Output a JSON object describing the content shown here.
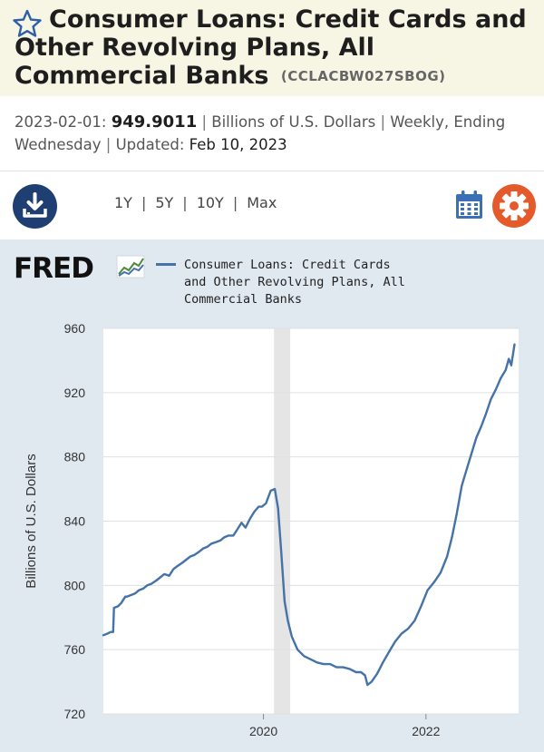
{
  "header": {
    "title": "Consumer Loans: Credit Cards and Other Revolving Plans, All Commercial Banks",
    "series_id": "(CCLACBW027SBOG)"
  },
  "meta": {
    "date": "2023-02-01:",
    "value": "949.9011",
    "units": "Billions of U.S. Dollars",
    "frequency": "Weekly, Ending Wednesday",
    "updated_label": "Updated:",
    "updated_date": "Feb 10, 2023",
    "separator": "|"
  },
  "controls": {
    "ranges": [
      "1Y",
      "5Y",
      "10Y",
      "Max"
    ],
    "icons": [
      "download-icon",
      "calendar-icon",
      "gear-icon"
    ]
  },
  "colors": {
    "series": "#4572a7",
    "recession": "#e5e5e5",
    "title_bg": "#f7f6e4",
    "panel_bg": "#e1e9f0",
    "download": "#1f3f73",
    "gear": "#e55a2b",
    "calendar": "#3b6fb6"
  },
  "brand": {
    "logo_text": "FRED"
  },
  "chart_data": {
    "type": "line",
    "title": "",
    "xlabel": "",
    "ylabel": "Billions of U.S. Dollars",
    "ylim": [
      720,
      960
    ],
    "yticks": [
      720,
      760,
      800,
      840,
      880,
      920,
      960
    ],
    "xticks": [
      {
        "label": "2020",
        "t": 2020.0
      },
      {
        "label": "2022",
        "t": 2022.0
      }
    ],
    "xlim": [
      2018.03,
      2023.14
    ],
    "grid": "horizontal",
    "legend": "top-left",
    "recession": [
      2020.13,
      2020.33
    ],
    "series": [
      {
        "name": "Consumer Loans: Credit Cards and Other Revolving Plans, All Commercial Banks",
        "t": [
          2018.03,
          2018.08,
          2018.12,
          2018.15,
          2018.16,
          2018.21,
          2018.25,
          2018.3,
          2018.32,
          2018.37,
          2018.42,
          2018.47,
          2018.52,
          2018.57,
          2018.62,
          2018.68,
          2018.73,
          2018.78,
          2018.84,
          2018.89,
          2018.94,
          2019.0,
          2019.05,
          2019.1,
          2019.15,
          2019.21,
          2019.26,
          2019.31,
          2019.36,
          2019.42,
          2019.47,
          2019.52,
          2019.57,
          2019.63,
          2019.68,
          2019.73,
          2019.78,
          2019.84,
          2019.89,
          2019.94,
          2019.98,
          2020.03,
          2020.09,
          2020.14,
          2020.18,
          2020.22,
          2020.26,
          2020.3,
          2020.35,
          2020.42,
          2020.5,
          2020.58,
          2020.66,
          2020.74,
          2020.82,
          2020.9,
          2020.98,
          2021.06,
          2021.14,
          2021.2,
          2021.25,
          2021.28,
          2021.33,
          2021.4,
          2021.47,
          2021.55,
          2021.62,
          2021.7,
          2021.78,
          2021.86,
          2021.94,
          2022.02,
          2022.1,
          2022.18,
          2022.26,
          2022.32,
          2022.38,
          2022.44,
          2022.5,
          2022.56,
          2022.62,
          2022.68,
          2022.74,
          2022.8,
          2022.86,
          2022.92,
          2022.98,
          2023.02,
          2023.05,
          2023.09
        ],
        "values": [
          769,
          770,
          771,
          771,
          786,
          787,
          789,
          793,
          793,
          794,
          795,
          797,
          798,
          800,
          801,
          803,
          805,
          807,
          806,
          810,
          812,
          814,
          816,
          818,
          819,
          821,
          823,
          824,
          826,
          827,
          828,
          830,
          831,
          831,
          835,
          839,
          836,
          842,
          846,
          849,
          849,
          851,
          859,
          860,
          848,
          820,
          790,
          778,
          768,
          760,
          756,
          754,
          752,
          751,
          751,
          749,
          749,
          748,
          746,
          746,
          744,
          738,
          740,
          745,
          752,
          759,
          765,
          770,
          773,
          778,
          787,
          797,
          802,
          808,
          818,
          830,
          845,
          862,
          872,
          882,
          892,
          899,
          907,
          916,
          922,
          929,
          934,
          941,
          937,
          950
        ]
      }
    ]
  }
}
